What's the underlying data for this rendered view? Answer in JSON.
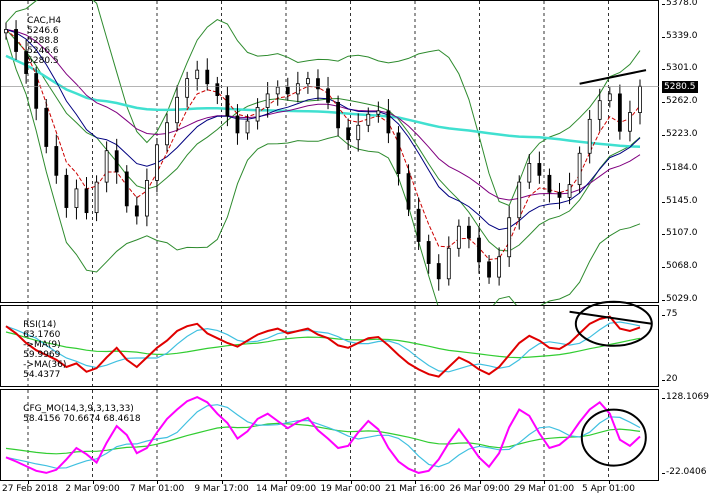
{
  "chart_data": {
    "type": "candlestick",
    "symbol": "CAC,H4",
    "quote": {
      "open": "5246.6",
      "high": "5288.8",
      "low": "5246.6",
      "close": "5280.5"
    },
    "current_price": "5280.5",
    "price_axis_labels": [
      "5378.0",
      "5339.0",
      "5301.0",
      "5262.0",
      "5223.0",
      "5184.0",
      "5145.0",
      "5107.0",
      "5068.0",
      "5029.0"
    ],
    "price_range": [
      5029,
      5378
    ],
    "time_labels": [
      "27 Feb 2018",
      "2 Mar 09:00",
      "7 Mar 01:00",
      "9 Mar 17:00",
      "14 Mar 09:00",
      "19 Mar 00:00",
      "21 Mar 16:00",
      "26 Mar 09:00",
      "29 Mar 01:00",
      "5 Apr 01:00"
    ],
    "close_series": [
      5348,
      5322,
      5296,
      5255,
      5210,
      5176,
      5138,
      5160,
      5132,
      5168,
      5205,
      5180,
      5140,
      5128,
      5170,
      5212,
      5238,
      5268,
      5290,
      5300,
      5284,
      5270,
      5246,
      5226,
      5240,
      5256,
      5272,
      5280,
      5272,
      5284,
      5290,
      5278,
      5262,
      5232,
      5218,
      5235,
      5248,
      5252,
      5226,
      5178,
      5136,
      5098,
      5072,
      5054,
      5090,
      5116,
      5102,
      5074,
      5056,
      5080,
      5126,
      5168,
      5190,
      5176,
      5156,
      5150,
      5165,
      5202,
      5242,
      5264,
      5272,
      5228,
      5250,
      5281
    ],
    "upper_indicator": {
      "name": "RSI(14)",
      "value": "63.1760",
      "ma1_label": "->MA(9)",
      "ma1_value": "59.9969",
      "ma2_label": "->MA(36)",
      "ma2_value": "54.4377",
      "axis_labels": [
        "75",
        "20"
      ],
      "range": [
        15,
        80
      ],
      "values": [
        64,
        58,
        50,
        44,
        40,
        36,
        30,
        33,
        26,
        29,
        38,
        46,
        36,
        30,
        38,
        46,
        52,
        60,
        64,
        66,
        58,
        54,
        50,
        47,
        52,
        57,
        60,
        62,
        58,
        60,
        62,
        57,
        54,
        48,
        46,
        50,
        54,
        55,
        48,
        40,
        33,
        28,
        24,
        22,
        30,
        38,
        34,
        28,
        24,
        30,
        40,
        50,
        56,
        52,
        46,
        45,
        50,
        58,
        66,
        70,
        72,
        62,
        60,
        63
      ]
    },
    "lower_indicator": {
      "name": "CFG_MO(14,3,9,3,13,33)",
      "values_label": "58.4156 70.6674 68.4618",
      "axis_labels": [
        "128.1069",
        "-22.0406"
      ],
      "range": [
        -22.0406,
        128.1069
      ],
      "values": [
        12,
        4,
        -5,
        -14,
        -18,
        -12,
        8,
        30,
        18,
        2,
        40,
        72,
        55,
        20,
        30,
        60,
        86,
        104,
        120,
        128,
        118,
        96,
        78,
        48,
        62,
        86,
        96,
        82,
        68,
        80,
        88,
        64,
        48,
        30,
        34,
        60,
        82,
        66,
        30,
        4,
        -10,
        -18,
        -14,
        8,
        40,
        66,
        40,
        12,
        -6,
        20,
        70,
        104,
        92,
        58,
        30,
        36,
        52,
        80,
        104,
        118,
        96,
        46,
        34,
        52
      ]
    }
  }
}
